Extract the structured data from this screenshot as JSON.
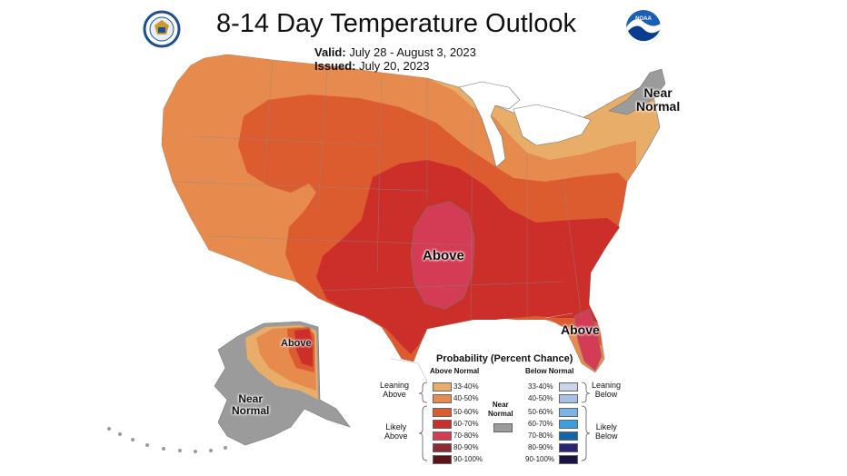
{
  "header": {
    "title": "8-14 Day Temperature Outlook",
    "valid_label": "Valid:",
    "valid_value": "July 28 - August 3, 2023",
    "issued_label": "Issued:",
    "issued_value": "July 20, 2023"
  },
  "logos": {
    "left": "department-of-commerce-seal",
    "right": "noaa-logo"
  },
  "map_labels": {
    "above_central": "Above",
    "above_florida": "Above",
    "above_alaska": "Above",
    "near_normal_ne_1": "Near",
    "near_normal_ne_2": "Normal",
    "near_normal_ak_1": "Near",
    "near_normal_ak_2": "Normal"
  },
  "colors": {
    "a33": "#e9ad6a",
    "a40": "#e68a4d",
    "a50": "#dc5c30",
    "a60": "#cc2f2a",
    "a70": "#d43b55",
    "a80": "#8d2a33",
    "a90": "#5a1418",
    "b33": "#c9d4ea",
    "b40": "#a6c1e3",
    "b50": "#7ab3e5",
    "b60": "#3a9fe0",
    "b70": "#1665a6",
    "b80": "#2a237a",
    "b90": "#1a1240",
    "near": "#9b9b9b",
    "great_lakes": "#ffffff"
  },
  "legend": {
    "title": "Probability (Percent Chance)",
    "above_header": "Above Normal",
    "below_header": "Below Normal",
    "leaning_above_1": "Leaning",
    "leaning_above_2": "Above",
    "likely_above_1": "Likely",
    "likely_above_2": "Above",
    "leaning_below_1": "Leaning",
    "leaning_below_2": "Below",
    "likely_below_1": "Likely",
    "likely_below_2": "Below",
    "near_normal_1": "Near",
    "near_normal_2": "Normal",
    "ranges": [
      "33-40%",
      "40-50%",
      "50-60%",
      "60-70%",
      "70-80%",
      "80-90%",
      "90-100%"
    ]
  }
}
